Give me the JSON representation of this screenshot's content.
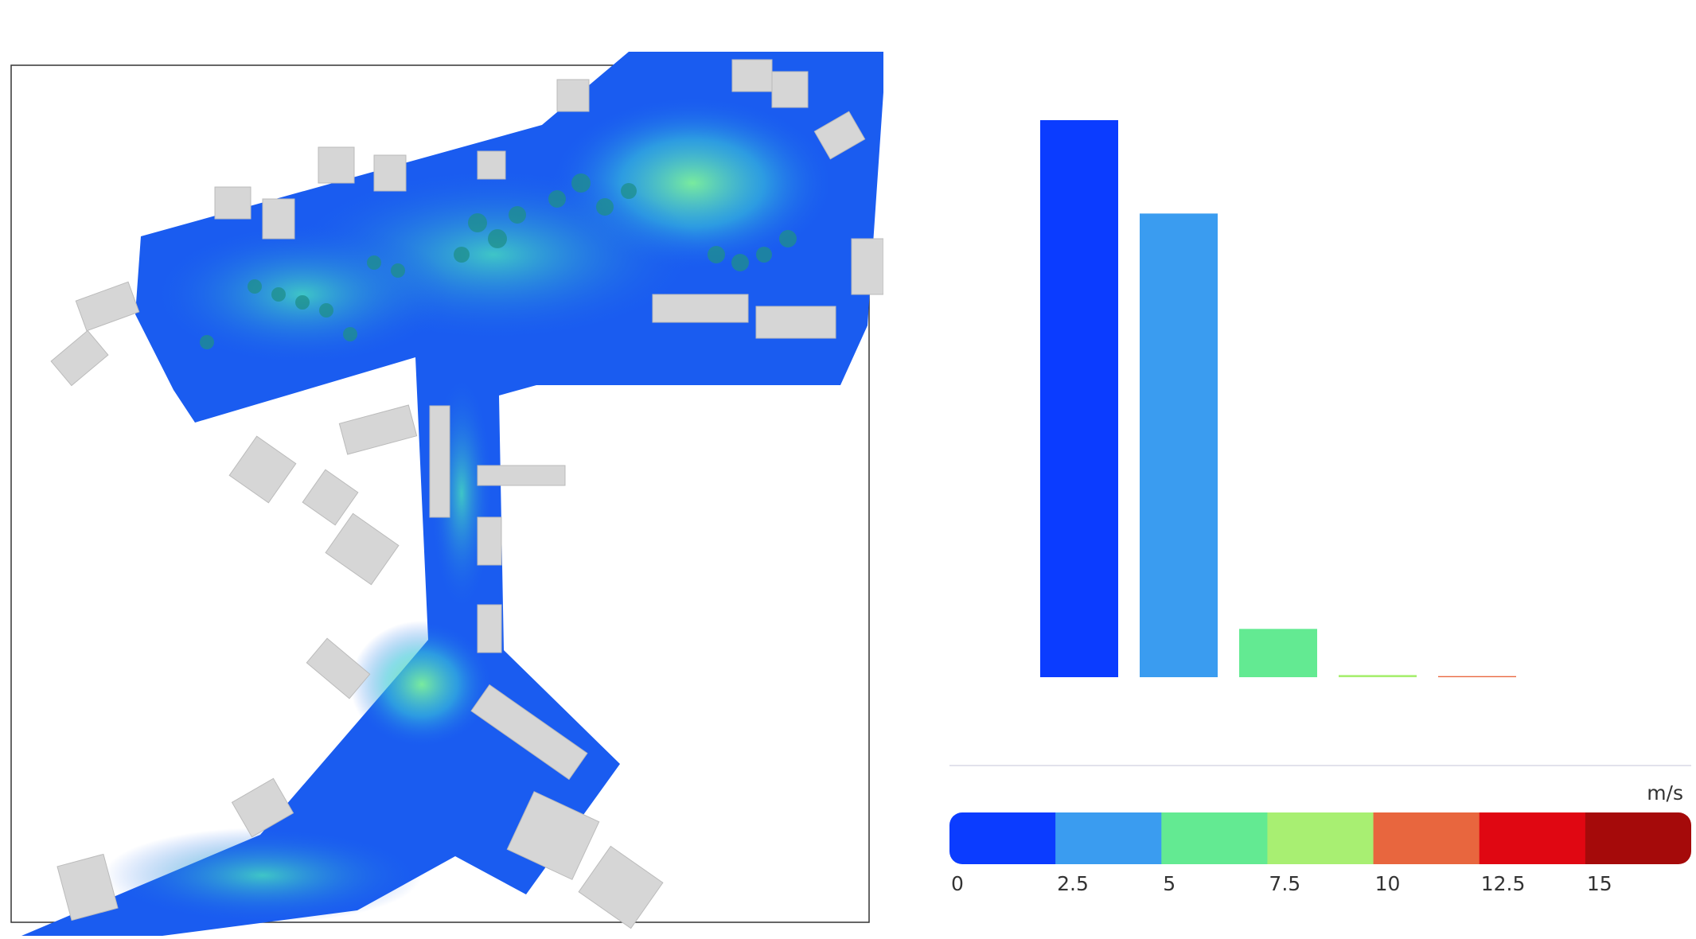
{
  "chart_data": {
    "type": "histogram",
    "values": [
      51.9,
      43.2,
      4.5,
      0.2,
      0.1
    ],
    "colorbar": {
      "unit": "m/s",
      "ticks": [
        0,
        2.5,
        5,
        7.5,
        10,
        12.5,
        15
      ],
      "colors": [
        "#0b3cff",
        "#3a9cf0",
        "#63ea92",
        "#a8ef72",
        "#e8663e",
        "#e00712",
        "#a50a0a"
      ]
    }
  }
}
